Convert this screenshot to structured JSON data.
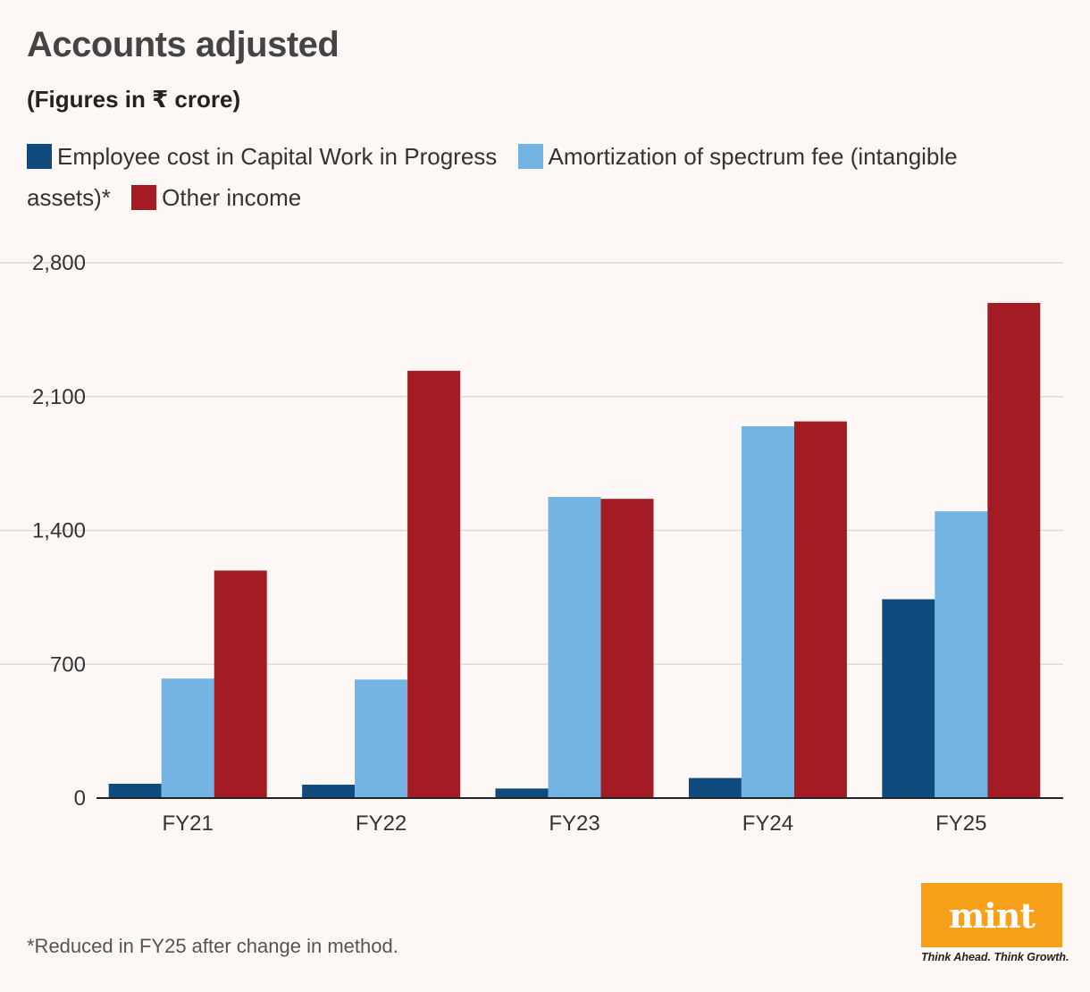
{
  "chart_data": {
    "type": "bar",
    "title": "Accounts adjusted",
    "subtitle": "(Figures in ₹ crore)",
    "categories": [
      "FY21",
      "FY22",
      "FY23",
      "FY24",
      "FY25"
    ],
    "series": [
      {
        "name": "Employee cost in Capital Work in Progress",
        "color": "#0f4c7d",
        "values": [
          75,
          70,
          50,
          105,
          1040
        ]
      },
      {
        "name": "Amortization of spectrum fee (intangible assets)*",
        "color": "#74b4e2",
        "values": [
          625,
          620,
          1575,
          1945,
          1500
        ]
      },
      {
        "name": "Other income",
        "color": "#a31c23",
        "values": [
          1190,
          2235,
          1565,
          1970,
          2590
        ]
      }
    ],
    "ylim": [
      0,
      2800
    ],
    "yticks": [
      0,
      700,
      1400,
      2100,
      2800
    ],
    "ytick_labels": [
      "0",
      "700",
      "1,400",
      "2,100",
      "2,800"
    ],
    "grid": true,
    "legend_position": "top"
  },
  "footnote": "*Reduced in FY25 after change in method.",
  "brand": {
    "logo_text": "mint",
    "tagline": "Think Ahead. Think Growth.",
    "logo_color": "#f7a11a"
  }
}
